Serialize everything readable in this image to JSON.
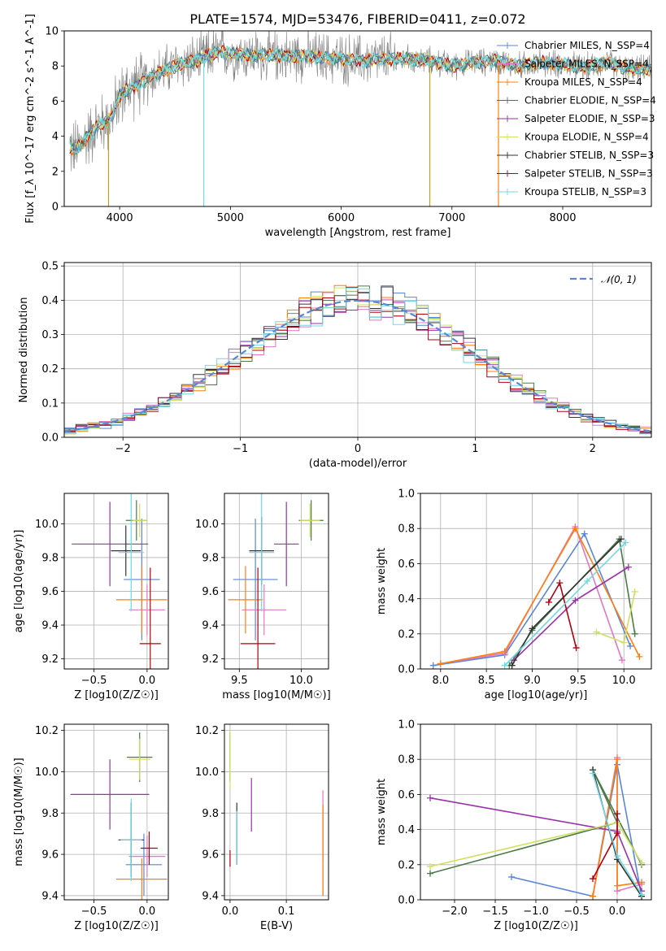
{
  "title": "PLATE=1574, MJD=53476, FIBERID=0411, z=0.072",
  "series_colors": [
    "#5b86d6",
    "#e377c2",
    "#ff7f0e",
    "#4a7a4a",
    "#9932a8",
    "#d0e060",
    "#333333",
    "#b00010",
    "#70d8e0"
  ],
  "chart_data": [
    {
      "id": "spectrum",
      "type": "line",
      "xlabel": "wavelength [Angstrom, rest frame]",
      "ylabel": "Flux [f_λ 10^-17 erg cm^-2 s^-1 A^-1]",
      "xlim": [
        3500,
        8800
      ],
      "ylim": [
        0,
        10
      ],
      "xticks": [
        4000,
        5000,
        6000,
        7000,
        8000
      ],
      "yticks": [
        0,
        2,
        4,
        6,
        8,
        10
      ],
      "legend": [
        "Chabrier MILES, N_SSP=4",
        "Salpeter MILES, N_SSP=4",
        "Kroupa MILES, N_SSP=4",
        "Chabrier ELODIE, N_SSP=4",
        "Salpeter ELODIE, N_SSP=3",
        "Kroupa ELODIE, N_SSP=4",
        "Chabrier STELIB, N_SSP=3",
        "Salpeter STELIB, N_SSP=3",
        "Kroupa STELIB, N_SSP=3"
      ],
      "model_continuum": {
        "x": [
          3550,
          3600,
          3700,
          3800,
          3900,
          3950,
          4000,
          4100,
          4200,
          4300,
          4400,
          4500,
          4600,
          4700,
          4800,
          4900,
          5000,
          5100,
          5200,
          5400,
          5600,
          5800,
          6000,
          6200,
          6400,
          6600,
          6800,
          7000,
          7200,
          7400,
          7600,
          7800,
          8000,
          8200,
          8400,
          8600,
          8800
        ],
        "y": [
          3.4,
          3.2,
          3.9,
          4.6,
          4.9,
          5.4,
          6.3,
          6.8,
          7.0,
          7.5,
          7.7,
          8.0,
          8.2,
          8.3,
          8.6,
          8.8,
          8.7,
          8.7,
          8.6,
          8.6,
          8.6,
          8.5,
          8.4,
          8.3,
          8.4,
          8.4,
          8.3,
          8.0,
          8.2,
          8.3,
          8.0,
          8.2,
          8.1,
          7.9,
          8.2,
          7.8,
          7.8
        ]
      },
      "spikes": [
        {
          "x": 4760,
          "y": 0
        },
        {
          "x": 6800,
          "y": 0
        },
        {
          "x": 7420,
          "y": 0
        },
        {
          "x": 3900,
          "y": 0
        }
      ]
    },
    {
      "id": "residuals",
      "type": "histogram",
      "xlabel": "(data-model)/error",
      "ylabel": "Normed distribution",
      "xlim": [
        -2.5,
        2.5
      ],
      "ylim": [
        0,
        0.51
      ],
      "xticks": [
        -2,
        -1,
        0,
        1,
        2
      ],
      "yticks": [
        0.0,
        0.1,
        0.2,
        0.3,
        0.4,
        0.5
      ],
      "legend": [
        "𝒩(0, 1)"
      ],
      "bins": {
        "start": -2.5,
        "width": 0.1,
        "count": 50
      }
    },
    {
      "id": "age-vs-Z",
      "type": "scatter-errorbar",
      "xlabel": "Z [log10(Z/Z☉)]",
      "ylabel": "age  [log10(age/yr)]",
      "xlim": [
        -0.78,
        0.2
      ],
      "ylim": [
        9.14,
        10.18
      ],
      "xticks": [
        -0.5,
        0.0
      ],
      "yticks": [
        9.2,
        9.4,
        9.6,
        9.8,
        10.0
      ],
      "points": [
        {
          "x": -0.05,
          "y": 9.67,
          "xerr": 0.17,
          "yerr": 0.36
        },
        {
          "x": 0.0,
          "y": 9.49,
          "xerr": 0.17,
          "yerr": 0.15
        },
        {
          "x": -0.05,
          "y": 9.55,
          "xerr": 0.24,
          "yerr": 0.2
        },
        {
          "x": -0.1,
          "y": 10.02,
          "xerr": 0.1,
          "yerr": 0.12
        },
        {
          "x": -0.35,
          "y": 9.88,
          "xerr": 0.36,
          "yerr": 0.25
        },
        {
          "x": -0.07,
          "y": 10.02,
          "xerr": 0.07,
          "yerr": 0.1
        },
        {
          "x": -0.2,
          "y": 9.84,
          "xerr": 0.14,
          "yerr": 0.15
        },
        {
          "x": 0.03,
          "y": 9.29,
          "xerr": 0.1,
          "yerr": 0.45
        },
        {
          "x": -0.15,
          "y": 9.83,
          "xerr": 0.12,
          "yerr": 0.35
        }
      ]
    },
    {
      "id": "age-vs-mass",
      "type": "scatter-errorbar",
      "xlabel": "mass [log10(M/M☉)]",
      "ylabel": "",
      "xlim": [
        9.38,
        10.22
      ],
      "ylim": [
        9.14,
        10.18
      ],
      "xticks": [
        9.5,
        10.0
      ],
      "yticks": [
        9.2,
        9.4,
        9.6,
        9.8,
        10.0
      ],
      "points": [
        {
          "x": 9.63,
          "y": 9.67,
          "xerr": 0.18,
          "yerr": 0.36
        },
        {
          "x": 9.7,
          "y": 9.49,
          "xerr": 0.18,
          "yerr": 0.15
        },
        {
          "x": 9.55,
          "y": 9.55,
          "xerr": 0.14,
          "yerr": 0.2
        },
        {
          "x": 10.08,
          "y": 10.02,
          "xerr": 0.1,
          "yerr": 0.12
        },
        {
          "x": 9.88,
          "y": 9.88,
          "xerr": 0.1,
          "yerr": 0.25
        },
        {
          "x": 10.07,
          "y": 10.02,
          "xerr": 0.08,
          "yerr": 0.1
        },
        {
          "x": 9.68,
          "y": 9.84,
          "xerr": 0.1,
          "yerr": 0.2
        },
        {
          "x": 9.65,
          "y": 9.29,
          "xerr": 0.14,
          "yerr": 0.45
        },
        {
          "x": 9.68,
          "y": 9.83,
          "xerr": 0.1,
          "yerr": 0.35
        }
      ]
    },
    {
      "id": "mass-weight-vs-age",
      "type": "line",
      "xlabel": "age  [log10(age/yr)]",
      "ylabel": "mass weight",
      "xlim": [
        7.78,
        10.3
      ],
      "ylim": [
        0,
        1.0
      ],
      "xticks": [
        8.0,
        8.5,
        9.0,
        9.5,
        10.0
      ],
      "yticks": [
        0.0,
        0.2,
        0.4,
        0.6,
        0.8,
        1.0
      ],
      "series": [
        {
          "x": [
            7.92,
            8.7,
            9.57,
            10.07
          ],
          "y": [
            0.02,
            0.08,
            0.77,
            0.13
          ]
        },
        {
          "x": [
            8.0,
            8.7,
            9.47,
            9.98
          ],
          "y": [
            0.03,
            0.09,
            0.81,
            0.05
          ]
        },
        {
          "x": [
            8.0,
            8.7,
            9.47,
            10.17
          ],
          "y": [
            0.03,
            0.1,
            0.8,
            0.07
          ]
        },
        {
          "x": [
            8.75,
            9.0,
            9.95,
            10.12
          ],
          "y": [
            0.02,
            0.22,
            0.74,
            0.2
          ]
        },
        {
          "x": [
            8.8,
            9.47,
            10.05
          ],
          "y": [
            0.05,
            0.39,
            0.58
          ]
        },
        {
          "x": [
            9.7,
            10.0,
            10.12
          ],
          "y": [
            0.21,
            0.15,
            0.44
          ]
        },
        {
          "x": [
            8.78,
            9.0,
            9.97
          ],
          "y": [
            0.02,
            0.23,
            0.74
          ]
        },
        {
          "x": [
            9.18,
            9.3,
            9.48
          ],
          "y": [
            0.38,
            0.49,
            0.12
          ]
        },
        {
          "x": [
            8.7,
            9.6,
            10.02
          ],
          "y": [
            0.02,
            0.5,
            0.72
          ]
        }
      ]
    },
    {
      "id": "mass-vs-Z",
      "type": "scatter-errorbar",
      "xlabel": "Z [log10(Z/Z☉)]",
      "ylabel": "mass [log10(M/M☉)]",
      "xlim": [
        -0.78,
        0.2
      ],
      "ylim": [
        9.38,
        10.23
      ],
      "xticks": [
        -0.5,
        0.0
      ],
      "yticks": [
        9.4,
        9.6,
        9.8,
        10.0,
        10.2
      ],
      "points": [
        {
          "x": -0.03,
          "y": 9.55,
          "xerr": 0.17,
          "yerr": 0.15
        },
        {
          "x": 0.0,
          "y": 9.59,
          "xerr": 0.17,
          "yerr": 0.1
        },
        {
          "x": -0.05,
          "y": 9.48,
          "xerr": 0.24,
          "yerr": 0.1
        },
        {
          "x": -0.07,
          "y": 10.07,
          "xerr": 0.12,
          "yerr": 0.12
        },
        {
          "x": -0.35,
          "y": 9.89,
          "xerr": 0.37,
          "yerr": 0.17
        },
        {
          "x": -0.07,
          "y": 10.06,
          "xerr": 0.1,
          "yerr": 0.1
        },
        {
          "x": -0.15,
          "y": 9.67,
          "xerr": 0.12,
          "yerr": 0.18
        },
        {
          "x": 0.02,
          "y": 9.63,
          "xerr": 0.08,
          "yerr": 0.08
        },
        {
          "x": -0.15,
          "y": 9.67,
          "xerr": 0.1,
          "yerr": 0.2
        }
      ]
    },
    {
      "id": "mass-vs-ebv",
      "type": "scatter-errorbar",
      "xlabel": "E(B-V)",
      "ylabel": "",
      "xlim": [
        -0.01,
        0.175
      ],
      "ylim": [
        9.38,
        10.23
      ],
      "xticks": [
        0.0,
        0.1
      ],
      "yticks": [
        9.4,
        9.6,
        9.8,
        10.0,
        10.2
      ],
      "points": [
        {
          "x": 0.165,
          "y": 9.62,
          "xerr": 0,
          "yerr": 0.22
        },
        {
          "x": 0.165,
          "y": 9.74,
          "xerr": 0,
          "yerr": 0.17
        },
        {
          "x": 0.165,
          "y": 9.62,
          "xerr": 0,
          "yerr": 0.22
        },
        {
          "x": 0.0,
          "y": 10.07,
          "xerr": 0,
          "yerr": 0.12
        },
        {
          "x": 0.038,
          "y": 9.84,
          "xerr": 0,
          "yerr": 0.13
        },
        {
          "x": 0.0,
          "y": 10.06,
          "xerr": 0,
          "yerr": 0.14
        },
        {
          "x": 0.012,
          "y": 9.7,
          "xerr": 0,
          "yerr": 0.15
        },
        {
          "x": 0.0,
          "y": 9.58,
          "xerr": 0,
          "yerr": 0.04
        },
        {
          "x": 0.012,
          "y": 9.68,
          "xerr": 0,
          "yerr": 0.13
        }
      ]
    },
    {
      "id": "mass-weight-vs-Z",
      "type": "line",
      "xlabel": "Z [log10(Z/Z☉)]",
      "ylabel": "mass weight",
      "xlim": [
        -2.42,
        0.42
      ],
      "ylim": [
        0,
        1.0
      ],
      "xticks": [
        -2.0,
        -1.5,
        -1.0,
        -0.5,
        0.0
      ],
      "yticks": [
        0.0,
        0.2,
        0.4,
        0.6,
        0.8,
        1.0
      ],
      "series": [
        {
          "x": [
            -1.3,
            -0.3,
            0.0,
            0.3
          ],
          "y": [
            0.13,
            0.02,
            0.77,
            0.02
          ]
        },
        {
          "x": [
            -0.3,
            0.0,
            0.0,
            0.3
          ],
          "y": [
            0.02,
            0.81,
            0.05,
            0.09
          ]
        },
        {
          "x": [
            -0.3,
            0.0,
            0.0,
            0.3
          ],
          "y": [
            0.02,
            0.8,
            0.08,
            0.1
          ]
        },
        {
          "x": [
            -2.3,
            0.0,
            -0.3,
            0.3
          ],
          "y": [
            0.15,
            0.44,
            0.74,
            0.2
          ]
        },
        {
          "x": [
            -2.3,
            0.0,
            0.3
          ],
          "y": [
            0.58,
            0.39,
            0.05
          ]
        },
        {
          "x": [
            -2.3,
            0.0,
            0.3
          ],
          "y": [
            0.19,
            0.44,
            0.21
          ]
        },
        {
          "x": [
            -0.3,
            0.0,
            0.3
          ],
          "y": [
            0.74,
            0.23,
            0.02
          ]
        },
        {
          "x": [
            -0.3,
            0.0,
            0.0
          ],
          "y": [
            0.12,
            0.38,
            0.49
          ]
        },
        {
          "x": [
            -0.3,
            0.0,
            0.3
          ],
          "y": [
            0.72,
            0.25,
            0.03
          ]
        }
      ]
    }
  ]
}
